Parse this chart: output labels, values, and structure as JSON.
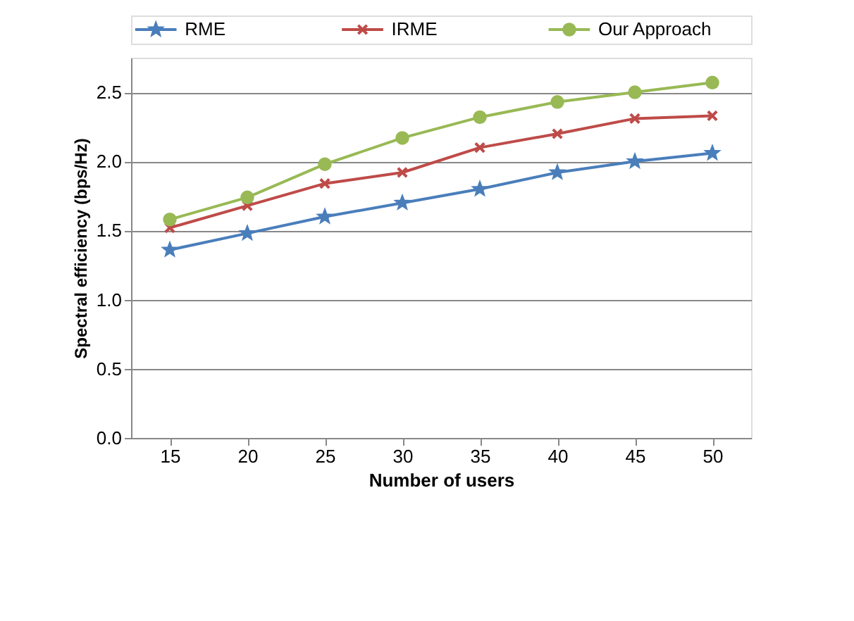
{
  "chart_data": {
    "type": "line",
    "xlabel": "Number of users",
    "ylabel": "Spectral efficiency (bps/Hz)",
    "categories": [
      "15",
      "20",
      "25",
      "30",
      "35",
      "40",
      "45",
      "50"
    ],
    "series": [
      {
        "name": "RME",
        "color": "#4a7ebb",
        "marker": "star",
        "values": [
          1.36,
          1.48,
          1.6,
          1.7,
          1.8,
          1.92,
          2.0,
          2.06
        ]
      },
      {
        "name": "IRME",
        "color": "#be4b48",
        "marker": "cross",
        "values": [
          1.52,
          1.68,
          1.84,
          1.92,
          2.1,
          2.2,
          2.31,
          2.33
        ]
      },
      {
        "name": "Our Approach",
        "color": "#98b954",
        "marker": "circle",
        "values": [
          1.58,
          1.74,
          1.98,
          2.17,
          2.32,
          2.43,
          2.5,
          2.57
        ]
      }
    ],
    "ylim": [
      0,
      2.75
    ],
    "yticks": [
      {
        "value": 0,
        "label": "0.0"
      },
      {
        "value": 0.5,
        "label": "0.5"
      },
      {
        "value": 1,
        "label": "1.0"
      },
      {
        "value": 1.5,
        "label": "1.5"
      },
      {
        "value": 2,
        "label": "2.0"
      },
      {
        "value": 2.5,
        "label": "2.5"
      }
    ],
    "grid": "y",
    "legend": "top",
    "line_style": "solid"
  }
}
